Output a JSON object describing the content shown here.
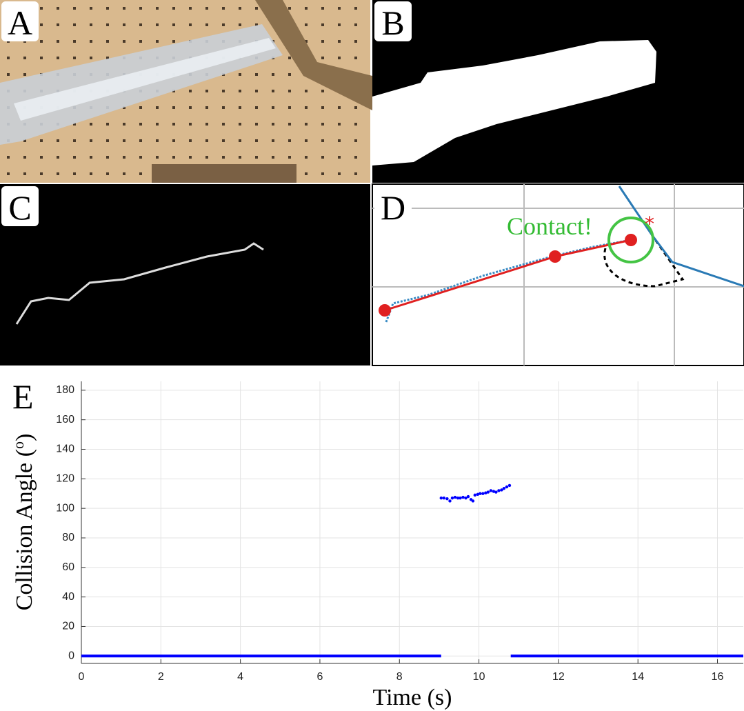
{
  "panels": {
    "a": "A",
    "b": "B",
    "c": "C",
    "d": "D",
    "e": "E",
    "contact": "Contact!"
  },
  "chart_data": {
    "type": "scatter",
    "xlabel": "Time (s)",
    "ylabel": [
      "Collision Angle (",
      "o",
      ")"
    ],
    "xlim": [
      0,
      16.65
    ],
    "ylim": [
      -5,
      186
    ],
    "xticks": [
      0,
      2,
      4,
      6,
      8,
      10,
      12,
      14,
      16
    ],
    "yticks": [
      0,
      20,
      40,
      60,
      80,
      100,
      120,
      140,
      160,
      180
    ],
    "grid": true,
    "series": [
      {
        "color": "#0000ff",
        "line": true,
        "x": [
          0,
          9.05,
          9.9,
          10.8,
          16.65
        ],
        "values": [
          0,
          0,
          null,
          0,
          0
        ]
      },
      {
        "color": "#0000ff",
        "x": [
          9.05,
          9.12,
          9.2,
          9.27,
          9.33,
          9.4,
          9.47,
          9.53,
          9.6,
          9.67,
          9.73,
          9.8,
          9.85,
          9.9,
          9.97,
          10.03,
          10.1,
          10.17,
          10.23,
          10.3,
          10.37,
          10.43,
          10.5,
          10.57,
          10.63,
          10.7,
          10.77
        ],
        "values": [
          107,
          107,
          106.5,
          105,
          107,
          107.5,
          107,
          107,
          107.5,
          107,
          108,
          106,
          105,
          109,
          109.5,
          110,
          110,
          110.5,
          111,
          112,
          111.5,
          111,
          112,
          112.5,
          113.5,
          114.5,
          115.5
        ]
      }
    ]
  }
}
